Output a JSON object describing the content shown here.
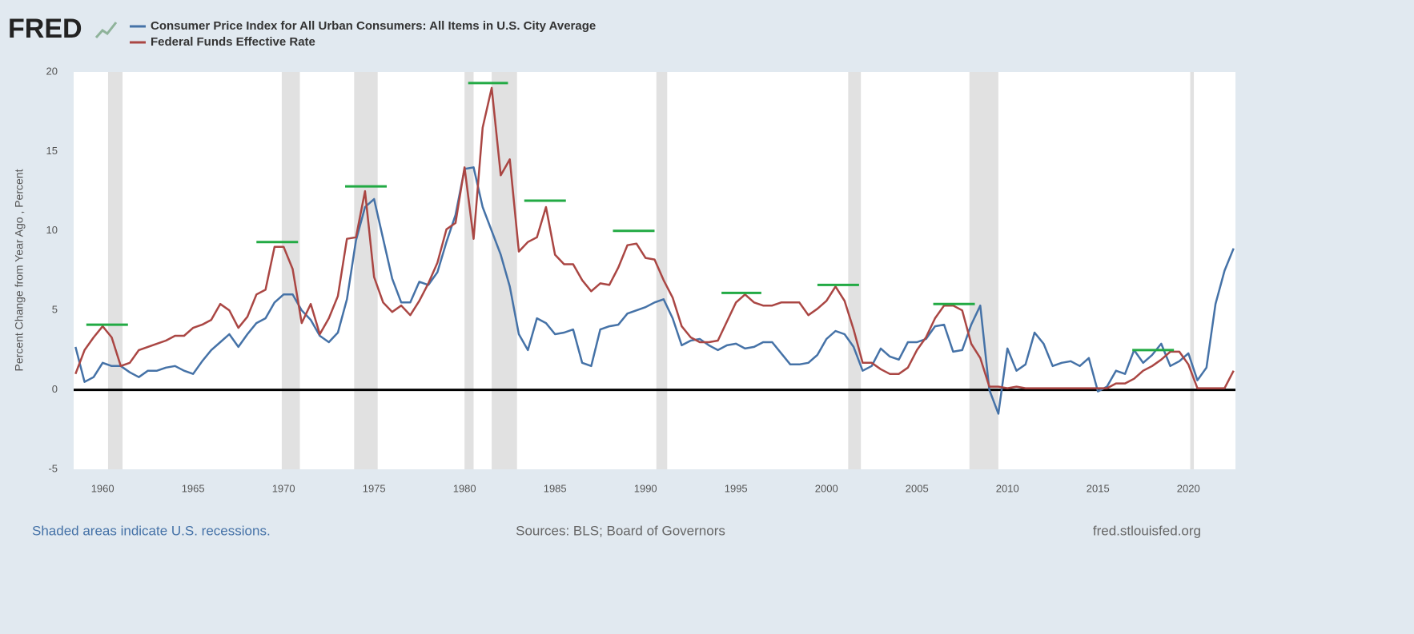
{
  "logo": "FRED",
  "chart_data": {
    "type": "line",
    "y_label": "Percent Change from Year Ago , Percent",
    "x": [
      1958.5,
      1959,
      1959.5,
      1960,
      1960.5,
      1961,
      1961.5,
      1962,
      1962.5,
      1963,
      1963.5,
      1964,
      1964.5,
      1965,
      1965.5,
      1966,
      1966.5,
      1967,
      1967.5,
      1968,
      1968.5,
      1969,
      1969.5,
      1970,
      1970.5,
      1971,
      1971.5,
      1972,
      1972.5,
      1973,
      1973.5,
      1974,
      1974.5,
      1975,
      1975.5,
      1976,
      1976.5,
      1977,
      1977.5,
      1978,
      1978.5,
      1979,
      1979.5,
      1980,
      1980.5,
      1981,
      1981.5,
      1982,
      1982.5,
      1983,
      1983.5,
      1984,
      1984.5,
      1985,
      1985.5,
      1986,
      1986.5,
      1987,
      1987.5,
      1988,
      1988.5,
      1989,
      1989.5,
      1990,
      1990.5,
      1991,
      1991.5,
      1992,
      1992.5,
      1993,
      1993.5,
      1994,
      1994.5,
      1995,
      1995.5,
      1996,
      1996.5,
      1997,
      1997.5,
      1998,
      1998.5,
      1999,
      1999.5,
      2000,
      2000.5,
      2001,
      2001.5,
      2002,
      2002.5,
      2003,
      2003.5,
      2004,
      2004.5,
      2005,
      2005.5,
      2006,
      2006.5,
      2007,
      2007.5,
      2008,
      2008.5,
      2009,
      2009.5,
      2010,
      2010.5,
      2011,
      2011.5,
      2012,
      2012.5,
      2013,
      2013.5,
      2014,
      2014.5,
      2015,
      2015.5,
      2016,
      2016.5,
      2017,
      2017.5,
      2018,
      2018.5,
      2019,
      2019.5,
      2020,
      2020.5,
      2021,
      2021.5,
      2022,
      2022.5
    ],
    "series": [
      {
        "name": "Consumer Price Index for All Urban Consumers: All Items in U.S. City Average",
        "color": "#4572a7",
        "values": [
          2.7,
          0.5,
          0.8,
          1.7,
          1.5,
          1.5,
          1.1,
          0.8,
          1.2,
          1.2,
          1.4,
          1.5,
          1.2,
          1.0,
          1.8,
          2.5,
          3.0,
          3.5,
          2.7,
          3.5,
          4.2,
          4.5,
          5.5,
          6.0,
          6.0,
          5.0,
          4.4,
          3.4,
          3.0,
          3.6,
          5.7,
          9.4,
          11.5,
          12.0,
          9.5,
          7.0,
          5.5,
          5.5,
          6.8,
          6.6,
          7.4,
          9.3,
          11.0,
          13.9,
          14.0,
          11.5,
          10.0,
          8.5,
          6.5,
          3.5,
          2.5,
          4.5,
          4.2,
          3.5,
          3.6,
          3.8,
          1.7,
          1.5,
          3.8,
          4.0,
          4.1,
          4.8,
          5.0,
          5.2,
          5.5,
          5.7,
          4.5,
          2.8,
          3.1,
          3.2,
          2.8,
          2.5,
          2.8,
          2.9,
          2.6,
          2.7,
          3.0,
          3.0,
          2.3,
          1.6,
          1.6,
          1.7,
          2.2,
          3.2,
          3.7,
          3.5,
          2.7,
          1.2,
          1.5,
          2.6,
          2.1,
          1.9,
          3.0,
          3.0,
          3.2,
          4.0,
          4.1,
          2.4,
          2.5,
          4.1,
          5.3,
          0.0,
          -1.5,
          2.6,
          1.2,
          1.6,
          3.6,
          2.9,
          1.5,
          1.7,
          1.8,
          1.5,
          2.0,
          -0.1,
          0.2,
          1.2,
          1.0,
          2.5,
          1.7,
          2.2,
          2.9,
          1.5,
          1.8,
          2.3,
          0.6,
          1.4,
          5.4,
          7.5,
          8.9
        ]
      },
      {
        "name": "Federal Funds Effective Rate",
        "color": "#aa4643",
        "values": [
          1.0,
          2.5,
          3.3,
          4.0,
          3.3,
          1.5,
          1.7,
          2.5,
          2.7,
          2.9,
          3.1,
          3.4,
          3.4,
          3.9,
          4.1,
          4.4,
          5.4,
          5.0,
          3.9,
          4.6,
          6.0,
          6.3,
          9.0,
          9.0,
          7.6,
          4.2,
          5.4,
          3.5,
          4.5,
          5.9,
          9.5,
          9.6,
          12.5,
          7.1,
          5.5,
          4.9,
          5.3,
          4.7,
          5.6,
          6.7,
          8.0,
          10.1,
          10.5,
          14.0,
          9.5,
          16.5,
          19.0,
          13.5,
          14.5,
          8.7,
          9.3,
          9.6,
          11.5,
          8.5,
          7.9,
          7.9,
          6.9,
          6.2,
          6.7,
          6.6,
          7.7,
          9.1,
          9.2,
          8.3,
          8.2,
          6.9,
          5.8,
          4.0,
          3.3,
          3.0,
          3.0,
          3.1,
          4.3,
          5.5,
          6.0,
          5.5,
          5.3,
          5.3,
          5.5,
          5.5,
          5.5,
          4.7,
          5.1,
          5.6,
          6.5,
          5.6,
          3.8,
          1.7,
          1.7,
          1.3,
          1.0,
          1.0,
          1.4,
          2.5,
          3.3,
          4.5,
          5.3,
          5.3,
          5.0,
          2.9,
          2.0,
          0.2,
          0.2,
          0.1,
          0.2,
          0.1,
          0.1,
          0.1,
          0.1,
          0.1,
          0.1,
          0.1,
          0.1,
          0.1,
          0.1,
          0.4,
          0.4,
          0.7,
          1.2,
          1.5,
          1.9,
          2.4,
          2.4,
          1.6,
          0.1,
          0.1,
          0.1,
          0.1,
          1.2
        ]
      }
    ],
    "xlim": [
      1958.4,
      2022.6
    ],
    "xticks": [
      1960,
      1965,
      1970,
      1975,
      1980,
      1985,
      1990,
      1995,
      2000,
      2005,
      2010,
      2015,
      2020
    ],
    "ylim": [
      -5,
      20
    ],
    "yticks": [
      -5,
      0,
      5,
      10,
      15,
      20
    ],
    "grid": false,
    "baseline": 0,
    "recession_color": "#e1e1e1",
    "recessions": [
      [
        1960.3,
        1961.1
      ],
      [
        1969.9,
        1970.9
      ],
      [
        1973.9,
        1975.2
      ],
      [
        1980.0,
        1980.5
      ],
      [
        1981.5,
        1982.9
      ],
      [
        1990.6,
        1991.2
      ],
      [
        2001.2,
        2001.9
      ],
      [
        2007.9,
        2009.5
      ],
      [
        2020.1,
        2020.3
      ]
    ],
    "marker_color": "#22aa44",
    "peak_markers": [
      [
        1959.1,
        1961.4,
        4.1
      ],
      [
        1968.5,
        1970.8,
        9.3
      ],
      [
        1973.4,
        1975.7,
        12.8
      ],
      [
        1980.2,
        1982.4,
        19.3
      ],
      [
        1983.3,
        1985.6,
        11.9
      ],
      [
        1988.2,
        1990.5,
        10.0
      ],
      [
        1994.2,
        1996.4,
        6.1
      ],
      [
        1999.5,
        2001.8,
        6.6
      ],
      [
        2005.9,
        2008.2,
        5.4
      ],
      [
        2016.9,
        2019.2,
        2.5
      ]
    ]
  },
  "footer": {
    "note": "Shaded areas indicate U.S. recessions.",
    "sources": "Sources: BLS; Board of Governors",
    "site": "fred.stlouisfed.org"
  }
}
